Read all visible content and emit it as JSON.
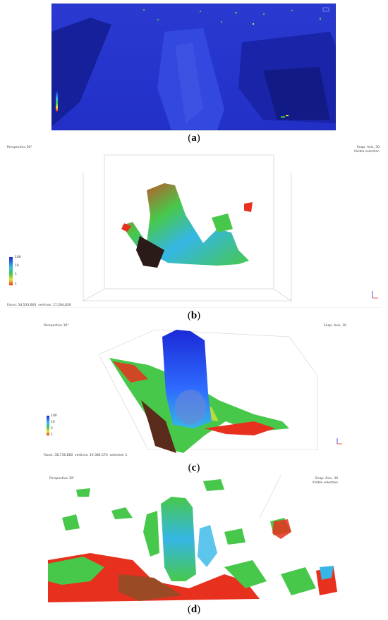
{
  "figure": {
    "panels": [
      {
        "id": "a",
        "caption": "(a)",
        "label": "a"
      },
      {
        "id": "b",
        "caption": "(b)",
        "label": "b",
        "top_left": "Perspective 30°",
        "top_right": "Snap: Axis, 30\nVisible selection",
        "bottom_left": "Faces: 34,533,660  vertices: 17,284,830",
        "legend_ticks": [
          "100",
          "10",
          "1",
          "1"
        ]
      },
      {
        "id": "c",
        "caption": "(c)",
        "label": "c",
        "top_left": "Perspective 30°",
        "top_right": "Snap: Axis, 30",
        "bottom_left": "Faces: 38,736,860  vertices: 19,384,570  selected: 1",
        "legend_ticks": [
          "100",
          "10",
          "5",
          "1"
        ]
      },
      {
        "id": "d",
        "caption": "(d)",
        "label": "d",
        "top_left": "Perspective 30°",
        "top_right": "Snap: Axis, 30\nVisible selection"
      }
    ],
    "colors": {
      "deep_blue": "#1a2ad6",
      "blue": "#2f6bff",
      "cyan": "#35b6e6",
      "green": "#48c84a",
      "yellow": "#e6e23a",
      "red": "#e8301f"
    }
  }
}
